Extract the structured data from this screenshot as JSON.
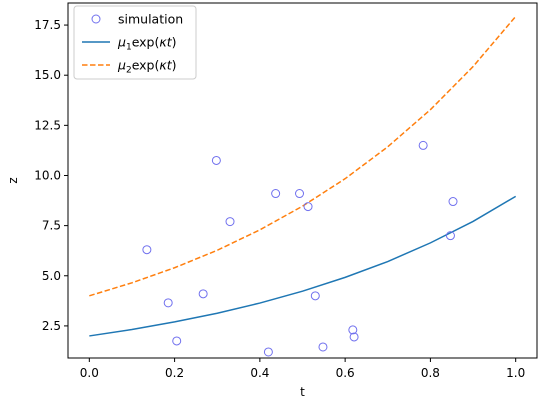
{
  "chart_data": {
    "type": "scatter",
    "xlabel": "t",
    "ylabel": "z",
    "xlim": [
      -0.05,
      1.05
    ],
    "ylim": [
      0.9,
      18.6
    ],
    "x_ticks": [
      0.0,
      0.2,
      0.4,
      0.6,
      0.8,
      1.0
    ],
    "x_tick_labels": [
      "0.0",
      "0.2",
      "0.4",
      "0.6",
      "0.8",
      "1.0"
    ],
    "y_ticks": [
      2.5,
      5.0,
      7.5,
      10.0,
      12.5,
      15.0,
      17.5
    ],
    "y_tick_labels": [
      "2.5",
      "5.0",
      "7.5",
      "10.0",
      "12.5",
      "15.0",
      "17.5"
    ],
    "grid": false,
    "legend_position": "top-left",
    "series": [
      {
        "name": "simulation",
        "kind": "scatter",
        "marker": "open-circle",
        "color": "#7070ee",
        "points": [
          {
            "x": 0.135,
            "y": 6.3
          },
          {
            "x": 0.185,
            "y": 3.65
          },
          {
            "x": 0.205,
            "y": 1.75
          },
          {
            "x": 0.267,
            "y": 4.1
          },
          {
            "x": 0.298,
            "y": 10.75
          },
          {
            "x": 0.33,
            "y": 7.7
          },
          {
            "x": 0.42,
            "y": 1.2
          },
          {
            "x": 0.437,
            "y": 9.1
          },
          {
            "x": 0.493,
            "y": 9.1
          },
          {
            "x": 0.513,
            "y": 8.45
          },
          {
            "x": 0.53,
            "y": 4.0
          },
          {
            "x": 0.548,
            "y": 1.45
          },
          {
            "x": 0.618,
            "y": 2.3
          },
          {
            "x": 0.621,
            "y": 1.95
          },
          {
            "x": 0.783,
            "y": 11.5
          },
          {
            "x": 0.847,
            "y": 7.0
          },
          {
            "x": 0.853,
            "y": 8.7
          }
        ]
      },
      {
        "name": "μ1exp(κt)",
        "label_parts": {
          "base": "μ",
          "sub": "1",
          "rest": "exp(",
          "italic": "κt",
          "close": ")"
        },
        "kind": "line",
        "style": "solid",
        "color": "#1f77b4",
        "x": [
          0.0,
          0.1,
          0.2,
          0.3,
          0.4,
          0.5,
          0.6,
          0.7,
          0.8,
          0.9,
          1.0
        ],
        "y": [
          2.0,
          2.32,
          2.7,
          3.13,
          3.64,
          4.23,
          4.92,
          5.71,
          6.64,
          7.71,
          8.96
        ]
      },
      {
        "name": "μ2exp(κt)",
        "label_parts": {
          "base": "μ",
          "sub": "2",
          "rest": "exp(",
          "italic": "κt",
          "close": ")"
        },
        "kind": "line",
        "style": "dashed",
        "color": "#ff7f0e",
        "x": [
          0.0,
          0.1,
          0.2,
          0.3,
          0.4,
          0.5,
          0.6,
          0.7,
          0.8,
          0.9,
          1.0
        ],
        "y": [
          4.0,
          4.65,
          5.4,
          6.27,
          7.29,
          8.47,
          9.84,
          11.43,
          13.28,
          15.43,
          17.93
        ]
      }
    ]
  }
}
